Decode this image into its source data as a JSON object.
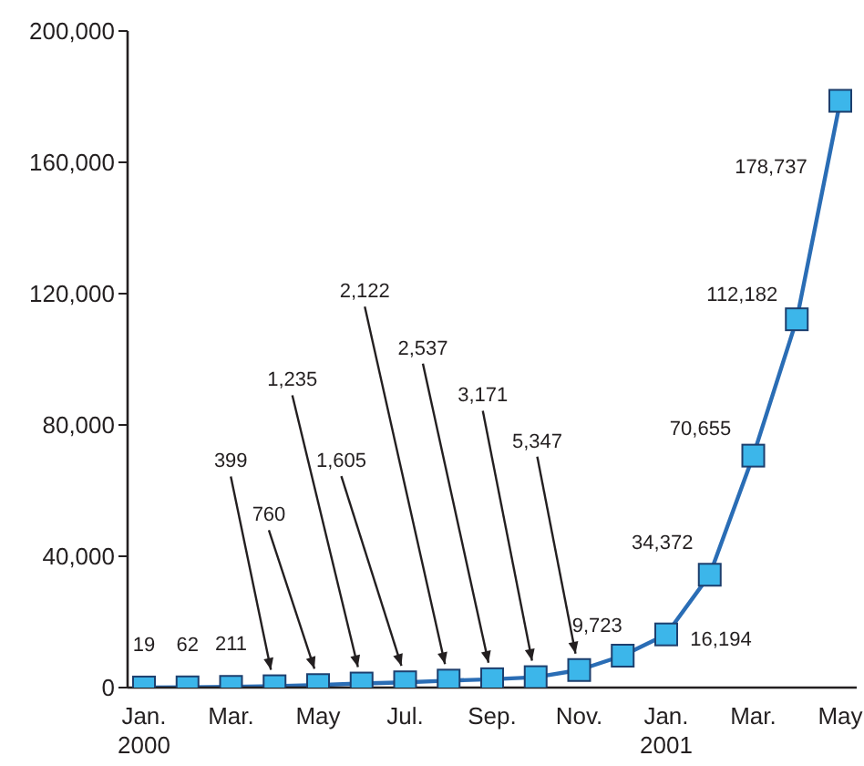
{
  "chart_data": {
    "type": "line",
    "categories": [
      "Jan.\n2000",
      null,
      "Mar.",
      null,
      "May",
      null,
      "Jul.",
      null,
      "Sep.",
      null,
      "Nov.",
      null,
      "Jan.\n2001",
      null,
      "Mar.",
      null,
      "May"
    ],
    "series": [
      {
        "color": "#2a6db5",
        "values": [
          19,
          62,
          211,
          399,
          760,
          1235,
          1605,
          2122,
          2537,
          3171,
          5347,
          9723,
          16194,
          34372,
          70655,
          112182,
          178737
        ],
        "value_labels": [
          "19",
          "62",
          "211",
          "399",
          "760",
          "1,235",
          "1,605",
          "2,122",
          "2,537",
          "3,171",
          "5,347",
          "9,723",
          "16,194",
          "34,372",
          "70,655",
          "112,182",
          "178,737"
        ]
      }
    ],
    "ylim": [
      0,
      200000
    ],
    "yticks": [
      {
        "value": 0,
        "label": "0"
      },
      {
        "value": 40000,
        "label": "40,000"
      },
      {
        "value": 80000,
        "label": "80,000"
      },
      {
        "value": 120000,
        "label": "120,000"
      },
      {
        "value": 160000,
        "label": "160,000"
      },
      {
        "value": 200000,
        "label": "200,000"
      }
    ],
    "marker": "square",
    "grid": false,
    "legend": false
  }
}
